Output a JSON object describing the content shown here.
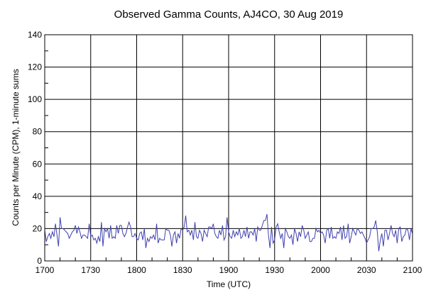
{
  "chart_data": {
    "type": "line",
    "title": "Observed Gamma Counts, AJ4CO, 30 Aug 2019",
    "xlabel": "Time (UTC)",
    "ylabel": "Counts per Minute (CPM), 1-minute sums",
    "xlim_minutes_labels": [
      "1700",
      "2100"
    ],
    "ylim": [
      0,
      140
    ],
    "x_tick_labels": [
      "1700",
      "1730",
      "1800",
      "1830",
      "1900",
      "1930",
      "2000",
      "2030",
      "2100"
    ],
    "y_tick_values": [
      0,
      20,
      40,
      60,
      80,
      100,
      120,
      140
    ],
    "grid": true,
    "line_color": "#4040b0",
    "x_start": "1700",
    "x_end": "2100",
    "series": [
      {
        "values": [
          19,
          12,
          15,
          17,
          14,
          18,
          15,
          23,
          16,
          9,
          27,
          20,
          20,
          19,
          18,
          17,
          14,
          16,
          18,
          19,
          22,
          17,
          21,
          18,
          14,
          16,
          16,
          15,
          14,
          23,
          15,
          16,
          13,
          14,
          11,
          15,
          12,
          24,
          9,
          20,
          18,
          20,
          14,
          22,
          14,
          15,
          14,
          22,
          17,
          22,
          22,
          17,
          15,
          17,
          21,
          24,
          21,
          15,
          15,
          17,
          14,
          13,
          17,
          18,
          13,
          20,
          8,
          14,
          12,
          15,
          14,
          16,
          13,
          23,
          11,
          14,
          13,
          13,
          13,
          20,
          19,
          19,
          16,
          9,
          16,
          18,
          11,
          17,
          14,
          20,
          19,
          21,
          28,
          18,
          19,
          16,
          19,
          13,
          24,
          15,
          14,
          19,
          17,
          12,
          19,
          17,
          15,
          21,
          21,
          20,
          23,
          17,
          15,
          14,
          19,
          16,
          22,
          13,
          15,
          27,
          18,
          15,
          14,
          19,
          15,
          18,
          16,
          20,
          14,
          15,
          19,
          15,
          21,
          14,
          18,
          18,
          16,
          20,
          12,
          21,
          19,
          19,
          22,
          25,
          25,
          29,
          16,
          8,
          21,
          11,
          13,
          21,
          23,
          18,
          14,
          17,
          8,
          20,
          18,
          15,
          14,
          16,
          10,
          20,
          17,
          12,
          18,
          15,
          22,
          19,
          14,
          16,
          18,
          12,
          12,
          14,
          14,
          20,
          18,
          19,
          17,
          18,
          16,
          11,
          19,
          20,
          14,
          21,
          14,
          15,
          14,
          18,
          17,
          21,
          13,
          22,
          14,
          15,
          23,
          11,
          15,
          20,
          18,
          16,
          20,
          19,
          17,
          18,
          16,
          14,
          11,
          13,
          15,
          20,
          20,
          21,
          25,
          18,
          6,
          13,
          17,
          9,
          19,
          19,
          13,
          17,
          22,
          17,
          15,
          19,
          11,
          20,
          21,
          12,
          15,
          16,
          20,
          19,
          13,
          20,
          17
        ]
      }
    ]
  }
}
